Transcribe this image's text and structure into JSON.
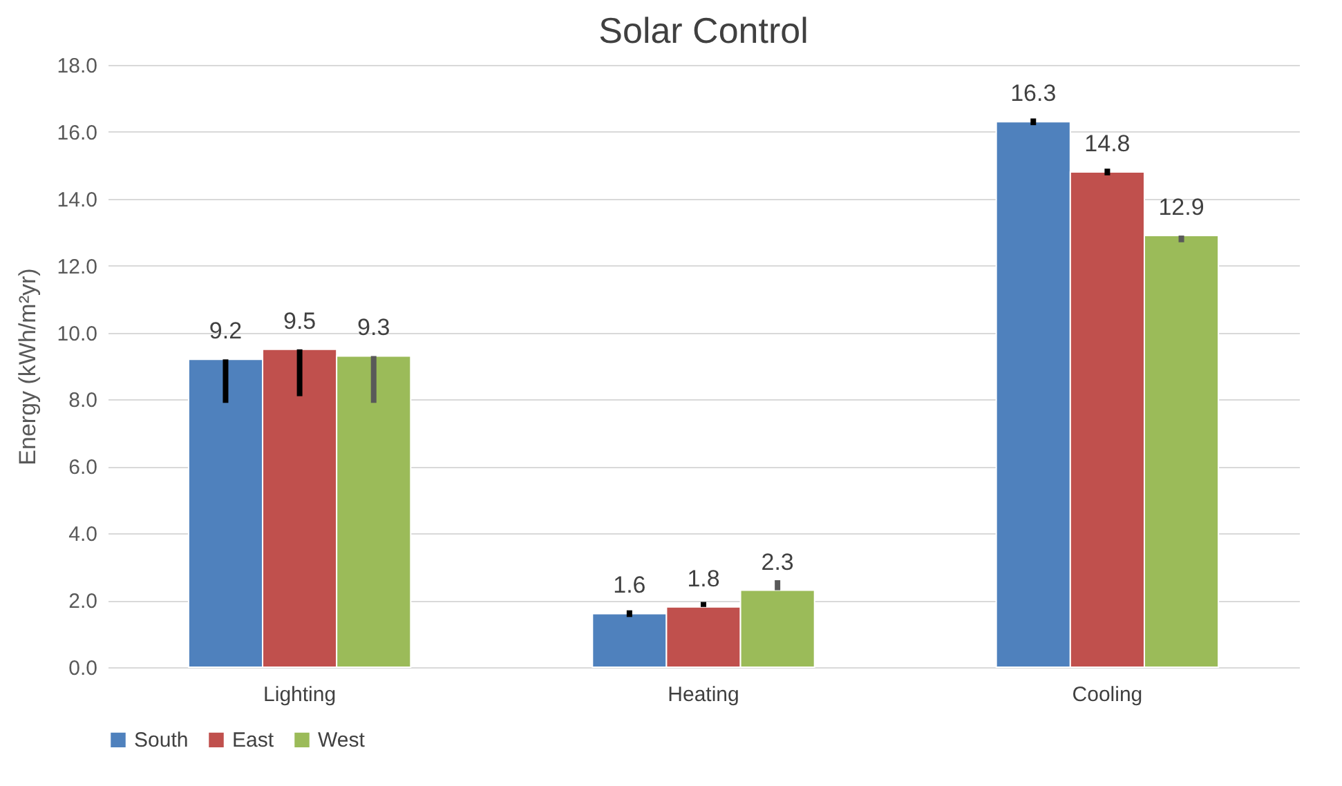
{
  "chart_data": {
    "type": "bar",
    "title": "Solar Control",
    "ylabel": "Energy (kWh/m²yr)",
    "categories": [
      "Lighting",
      "Heating",
      "Cooling"
    ],
    "series": [
      {
        "name": "South",
        "color": "#4f81bd",
        "values": [
          9.2,
          1.6,
          16.3
        ],
        "errors": [
          [
            7.9,
            9.2
          ],
          [
            1.5,
            1.7
          ],
          [
            16.2,
            16.4
          ]
        ]
      },
      {
        "name": "East",
        "color": "#c0504d",
        "values": [
          9.5,
          1.8,
          14.8
        ],
        "errors": [
          [
            8.1,
            9.5
          ],
          [
            1.8,
            1.95
          ],
          [
            14.7,
            14.9
          ]
        ]
      },
      {
        "name": "West",
        "color": "#9bbb59",
        "values": [
          9.3,
          2.3,
          12.9
        ],
        "errors": [
          [
            7.9,
            9.3
          ],
          [
            2.3,
            2.6
          ],
          [
            12.7,
            12.9
          ]
        ]
      }
    ],
    "ylim": [
      0,
      18
    ],
    "yticks": [
      {
        "value": 0,
        "label": "0.0"
      },
      {
        "value": 2,
        "label": "2.0"
      },
      {
        "value": 4,
        "label": "4.0"
      },
      {
        "value": 6,
        "label": "6.0"
      },
      {
        "value": 8,
        "label": "8.0"
      },
      {
        "value": 10,
        "label": "10.0"
      },
      {
        "value": 12,
        "label": "12.0"
      },
      {
        "value": 14,
        "label": "14.0"
      },
      {
        "value": 16,
        "label": "16.0"
      },
      {
        "value": 18,
        "label": "18.0"
      }
    ],
    "grid": "y",
    "legend": "bottom",
    "data_labels": true
  }
}
